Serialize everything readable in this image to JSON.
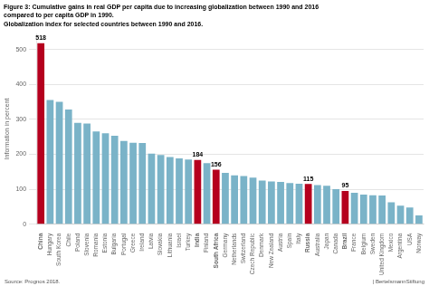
{
  "chart_data": {
    "type": "bar",
    "title": [
      "Figure 3: Cumulative gains in real GDP per capita due to increasing globalization between 1990 and 2016",
      "compared to per capita GDP in 1990."
    ],
    "subtitle": "Globalization index for selected countries between 1990 and 2016.",
    "ylabel": "Information in percent",
    "annotations": [
      "Source: Prognos 2018.",
      "| BertelsmannStiftung"
    ],
    "categories": [
      "China",
      "Hungary",
      "South Korea",
      "Chile",
      "Poland",
      "Slovenia",
      "Romania",
      "Estonia",
      "Bulgaria",
      "Portugal",
      "Greece",
      "Ireland",
      "Latvia",
      "Slovakia",
      "Lithuania",
      "Israel",
      "Turkey",
      "India",
      "Finland",
      "South Africa",
      "Germany",
      "Netherlands",
      "Switzerland",
      "Czech Republic",
      "Denmark",
      "New Zealand",
      "Austria",
      "Spain",
      "Italy",
      "Russia",
      "Australia",
      "Japan",
      "Canada",
      "Brazil",
      "France",
      "Belgium",
      "Sweden",
      "United Kingdom",
      "Mexico",
      "Argentina",
      "USA",
      "Norway"
    ],
    "values": [
      518,
      355,
      350,
      328,
      290,
      288,
      265,
      260,
      253,
      238,
      233,
      232,
      202,
      198,
      192,
      188,
      185,
      184,
      175,
      156,
      147,
      140,
      138,
      133,
      125,
      122,
      121,
      118,
      116,
      115,
      112,
      110,
      100,
      95,
      90,
      85,
      83,
      82,
      63,
      53,
      48,
      25
    ],
    "value_labels": [
      "518",
      null,
      null,
      null,
      null,
      null,
      null,
      null,
      null,
      null,
      null,
      null,
      null,
      null,
      null,
      null,
      null,
      "184",
      null,
      "156",
      null,
      null,
      null,
      null,
      null,
      null,
      null,
      null,
      null,
      "115",
      null,
      null,
      null,
      "95",
      null,
      null,
      null,
      null,
      null,
      null,
      null,
      null
    ],
    "data_labels": true,
    "colors": [
      "#b5001e",
      "#7ab3c8",
      "#7ab3c8",
      "#7ab3c8",
      "#7ab3c8",
      "#7ab3c8",
      "#7ab3c8",
      "#7ab3c8",
      "#7ab3c8",
      "#7ab3c8",
      "#7ab3c8",
      "#7ab3c8",
      "#7ab3c8",
      "#7ab3c8",
      "#7ab3c8",
      "#7ab3c8",
      "#7ab3c8",
      "#b5001e",
      "#7ab3c8",
      "#b5001e",
      "#7ab3c8",
      "#7ab3c8",
      "#7ab3c8",
      "#7ab3c8",
      "#7ab3c8",
      "#7ab3c8",
      "#7ab3c8",
      "#7ab3c8",
      "#7ab3c8",
      "#b5001e",
      "#7ab3c8",
      "#7ab3c8",
      "#7ab3c8",
      "#b5001e",
      "#7ab3c8",
      "#7ab3c8",
      "#7ab3c8",
      "#7ab3c8",
      "#7ab3c8",
      "#7ab3c8",
      "#7ab3c8",
      "#7ab3c8"
    ],
    "ylim": [
      0,
      545
    ],
    "yticks": [
      0,
      100,
      200,
      300,
      400,
      500
    ],
    "grid": true
  }
}
